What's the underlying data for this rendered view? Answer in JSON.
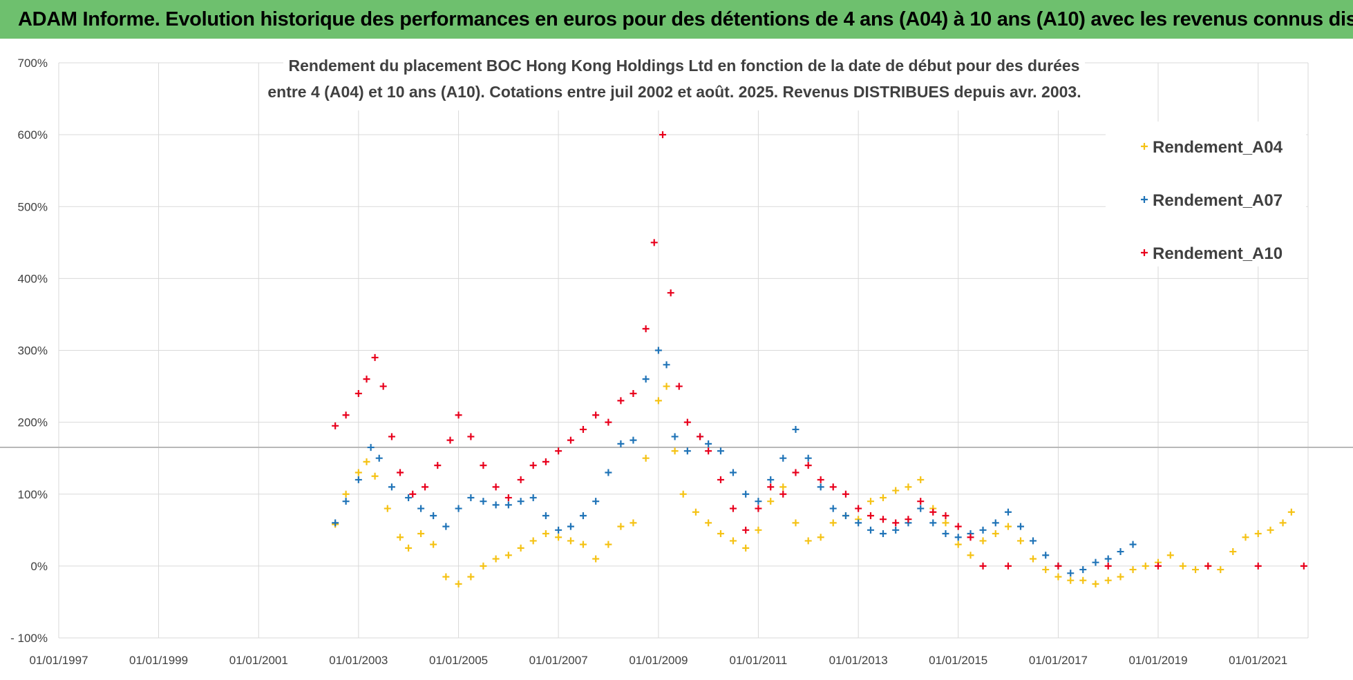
{
  "header": {
    "banner": "ADAM Informe. Evolution historique des performances en euros pour des détentions de 4 ans (A04) à 10 ans (A10) avec les revenus connus distribués"
  },
  "chart_data": {
    "type": "scatter",
    "title_line1": "Rendement du placement BOC Hong Kong Holdings Ltd en fonction de la date de début pour des durées",
    "title_line2": "entre 4 (A04) et 10 ans (A10).  Cotations entre juil 2002 et août. 2025.  Revenus DISTRIBUES depuis avr. 2003.",
    "x_ticks": [
      "01/01/1997",
      "01/01/1999",
      "01/01/2001",
      "01/01/2003",
      "01/01/2005",
      "01/01/2007",
      "01/01/2009",
      "01/01/2011",
      "01/01/2013",
      "01/01/2015",
      "01/01/2017",
      "01/01/2019",
      "01/01/2021"
    ],
    "y_ticks": [
      "700%",
      "600%",
      "500%",
      "400%",
      "300%",
      "200%",
      "100%",
      "0%",
      "- 100%"
    ],
    "xlim": [
      "1997-01-01",
      "2022-01-01"
    ],
    "ylim": [
      -100,
      700
    ],
    "grid": true,
    "legend_position": "top-right",
    "marker": "+",
    "series": [
      {
        "name": "Rendement_A04",
        "color": "#f5c214",
        "points": [
          [
            "2002-07-15",
            58
          ],
          [
            "2002-10-01",
            100
          ],
          [
            "2003-01-01",
            130
          ],
          [
            "2003-03-01",
            145
          ],
          [
            "2003-05-01",
            125
          ],
          [
            "2003-08-01",
            80
          ],
          [
            "2003-11-01",
            40
          ],
          [
            "2004-01-01",
            25
          ],
          [
            "2004-04-01",
            45
          ],
          [
            "2004-07-01",
            30
          ],
          [
            "2004-10-01",
            -15
          ],
          [
            "2005-01-01",
            -25
          ],
          [
            "2005-04-01",
            -15
          ],
          [
            "2005-07-01",
            0
          ],
          [
            "2005-10-01",
            10
          ],
          [
            "2006-01-01",
            15
          ],
          [
            "2006-04-01",
            25
          ],
          [
            "2006-07-01",
            35
          ],
          [
            "2006-10-01",
            45
          ],
          [
            "2007-01-01",
            40
          ],
          [
            "2007-04-01",
            35
          ],
          [
            "2007-07-01",
            30
          ],
          [
            "2007-10-01",
            10
          ],
          [
            "2008-01-01",
            30
          ],
          [
            "2008-04-01",
            55
          ],
          [
            "2008-07-01",
            60
          ],
          [
            "2008-10-01",
            150
          ],
          [
            "2009-01-01",
            230
          ],
          [
            "2009-03-01",
            250
          ],
          [
            "2009-05-01",
            160
          ],
          [
            "2009-07-01",
            100
          ],
          [
            "2009-10-01",
            75
          ],
          [
            "2010-01-01",
            60
          ],
          [
            "2010-04-01",
            45
          ],
          [
            "2010-07-01",
            35
          ],
          [
            "2010-10-01",
            25
          ],
          [
            "2011-01-01",
            50
          ],
          [
            "2011-04-01",
            90
          ],
          [
            "2011-07-01",
            110
          ],
          [
            "2011-10-01",
            60
          ],
          [
            "2012-01-01",
            35
          ],
          [
            "2012-04-01",
            40
          ],
          [
            "2012-07-01",
            60
          ],
          [
            "2012-10-01",
            70
          ],
          [
            "2013-01-01",
            65
          ],
          [
            "2013-04-01",
            90
          ],
          [
            "2013-07-01",
            95
          ],
          [
            "2013-10-01",
            105
          ],
          [
            "2014-01-01",
            110
          ],
          [
            "2014-04-01",
            120
          ],
          [
            "2014-07-01",
            80
          ],
          [
            "2014-10-01",
            60
          ],
          [
            "2015-01-01",
            30
          ],
          [
            "2015-04-01",
            15
          ],
          [
            "2015-07-01",
            35
          ],
          [
            "2015-10-01",
            45
          ],
          [
            "2016-01-01",
            55
          ],
          [
            "2016-04-01",
            35
          ],
          [
            "2016-07-01",
            10
          ],
          [
            "2016-10-01",
            -5
          ],
          [
            "2017-01-01",
            -15
          ],
          [
            "2017-04-01",
            -20
          ],
          [
            "2017-07-01",
            -20
          ],
          [
            "2017-10-01",
            -25
          ],
          [
            "2018-01-01",
            -20
          ],
          [
            "2018-04-01",
            -15
          ],
          [
            "2018-07-01",
            -5
          ],
          [
            "2018-10-01",
            0
          ],
          [
            "2019-01-01",
            5
          ],
          [
            "2019-04-01",
            15
          ],
          [
            "2019-07-01",
            0
          ],
          [
            "2019-10-01",
            -5
          ],
          [
            "2020-01-01",
            0
          ],
          [
            "2020-04-01",
            -5
          ],
          [
            "2020-07-01",
            20
          ],
          [
            "2020-10-01",
            40
          ],
          [
            "2021-01-01",
            45
          ],
          [
            "2021-04-01",
            50
          ],
          [
            "2021-07-01",
            60
          ],
          [
            "2021-09-01",
            75
          ]
        ]
      },
      {
        "name": "Rendement_A07",
        "color": "#1f73b7",
        "points": [
          [
            "2002-07-15",
            60
          ],
          [
            "2002-10-01",
            90
          ],
          [
            "2003-01-01",
            120
          ],
          [
            "2003-04-01",
            165
          ],
          [
            "2003-06-01",
            150
          ],
          [
            "2003-09-01",
            110
          ],
          [
            "2004-01-01",
            95
          ],
          [
            "2004-04-01",
            80
          ],
          [
            "2004-07-01",
            70
          ],
          [
            "2004-10-01",
            55
          ],
          [
            "2005-01-01",
            80
          ],
          [
            "2005-04-01",
            95
          ],
          [
            "2005-07-01",
            90
          ],
          [
            "2005-10-01",
            85
          ],
          [
            "2006-01-01",
            85
          ],
          [
            "2006-04-01",
            90
          ],
          [
            "2006-07-01",
            95
          ],
          [
            "2006-10-01",
            70
          ],
          [
            "2007-01-01",
            50
          ],
          [
            "2007-04-01",
            55
          ],
          [
            "2007-07-01",
            70
          ],
          [
            "2007-10-01",
            90
          ],
          [
            "2008-01-01",
            130
          ],
          [
            "2008-04-01",
            170
          ],
          [
            "2008-07-01",
            175
          ],
          [
            "2008-10-01",
            260
          ],
          [
            "2009-01-01",
            300
          ],
          [
            "2009-03-01",
            280
          ],
          [
            "2009-05-01",
            180
          ],
          [
            "2009-08-01",
            160
          ],
          [
            "2009-11-01",
            180
          ],
          [
            "2010-01-01",
            170
          ],
          [
            "2010-04-01",
            160
          ],
          [
            "2010-07-01",
            130
          ],
          [
            "2010-10-01",
            100
          ],
          [
            "2011-01-01",
            90
          ],
          [
            "2011-04-01",
            120
          ],
          [
            "2011-07-01",
            150
          ],
          [
            "2011-10-01",
            190
          ],
          [
            "2012-01-01",
            150
          ],
          [
            "2012-04-01",
            110
          ],
          [
            "2012-07-01",
            80
          ],
          [
            "2012-10-01",
            70
          ],
          [
            "2013-01-01",
            60
          ],
          [
            "2013-04-01",
            50
          ],
          [
            "2013-07-01",
            45
          ],
          [
            "2013-10-01",
            50
          ],
          [
            "2014-01-01",
            60
          ],
          [
            "2014-04-01",
            80
          ],
          [
            "2014-07-01",
            60
          ],
          [
            "2014-10-01",
            45
          ],
          [
            "2015-01-01",
            40
          ],
          [
            "2015-04-01",
            45
          ],
          [
            "2015-07-01",
            50
          ],
          [
            "2015-10-01",
            60
          ],
          [
            "2016-01-01",
            75
          ],
          [
            "2016-04-01",
            55
          ],
          [
            "2016-07-01",
            35
          ],
          [
            "2016-10-01",
            15
          ],
          [
            "2017-01-01",
            0
          ],
          [
            "2017-04-01",
            -10
          ],
          [
            "2017-07-01",
            -5
          ],
          [
            "2017-10-01",
            5
          ],
          [
            "2018-01-01",
            10
          ],
          [
            "2018-04-01",
            20
          ],
          [
            "2018-07-01",
            30
          ]
        ]
      },
      {
        "name": "Rendement_A10",
        "color": "#e8001c",
        "points": [
          [
            "2002-07-15",
            195
          ],
          [
            "2002-10-01",
            210
          ],
          [
            "2003-01-01",
            240
          ],
          [
            "2003-03-01",
            260
          ],
          [
            "2003-05-01",
            290
          ],
          [
            "2003-07-01",
            250
          ],
          [
            "2003-09-01",
            180
          ],
          [
            "2003-11-01",
            130
          ],
          [
            "2004-02-01",
            100
          ],
          [
            "2004-05-01",
            110
          ],
          [
            "2004-08-01",
            140
          ],
          [
            "2004-11-01",
            175
          ],
          [
            "2005-01-01",
            210
          ],
          [
            "2005-04-01",
            180
          ],
          [
            "2005-07-01",
            140
          ],
          [
            "2005-10-01",
            110
          ],
          [
            "2006-01-01",
            95
          ],
          [
            "2006-04-01",
            120
          ],
          [
            "2006-07-01",
            140
          ],
          [
            "2006-10-01",
            145
          ],
          [
            "2007-01-01",
            160
          ],
          [
            "2007-04-01",
            175
          ],
          [
            "2007-07-01",
            190
          ],
          [
            "2007-10-01",
            210
          ],
          [
            "2008-01-01",
            200
          ],
          [
            "2008-04-01",
            230
          ],
          [
            "2008-07-01",
            240
          ],
          [
            "2008-10-01",
            330
          ],
          [
            "2008-12-01",
            450
          ],
          [
            "2009-02-01",
            600
          ],
          [
            "2009-04-01",
            380
          ],
          [
            "2009-06-01",
            250
          ],
          [
            "2009-08-01",
            200
          ],
          [
            "2009-11-01",
            180
          ],
          [
            "2010-01-01",
            160
          ],
          [
            "2010-04-01",
            120
          ],
          [
            "2010-07-01",
            80
          ],
          [
            "2010-10-01",
            50
          ],
          [
            "2011-01-01",
            80
          ],
          [
            "2011-04-01",
            110
          ],
          [
            "2011-07-01",
            100
          ],
          [
            "2011-10-01",
            130
          ],
          [
            "2012-01-01",
            140
          ],
          [
            "2012-04-01",
            120
          ],
          [
            "2012-07-01",
            110
          ],
          [
            "2012-10-01",
            100
          ],
          [
            "2013-01-01",
            80
          ],
          [
            "2013-04-01",
            70
          ],
          [
            "2013-07-01",
            65
          ],
          [
            "2013-10-01",
            60
          ],
          [
            "2014-01-01",
            65
          ],
          [
            "2014-04-01",
            90
          ],
          [
            "2014-07-01",
            75
          ],
          [
            "2014-10-01",
            70
          ],
          [
            "2015-01-01",
            55
          ],
          [
            "2015-04-01",
            40
          ],
          [
            "2015-07-01",
            0
          ],
          [
            "2016-01-01",
            0
          ],
          [
            "2017-01-01",
            0
          ],
          [
            "2018-01-01",
            0
          ],
          [
            "2019-01-01",
            0
          ],
          [
            "2020-01-01",
            0
          ],
          [
            "2021-01-01",
            0
          ],
          [
            "2021-12-01",
            0
          ]
        ]
      }
    ]
  }
}
